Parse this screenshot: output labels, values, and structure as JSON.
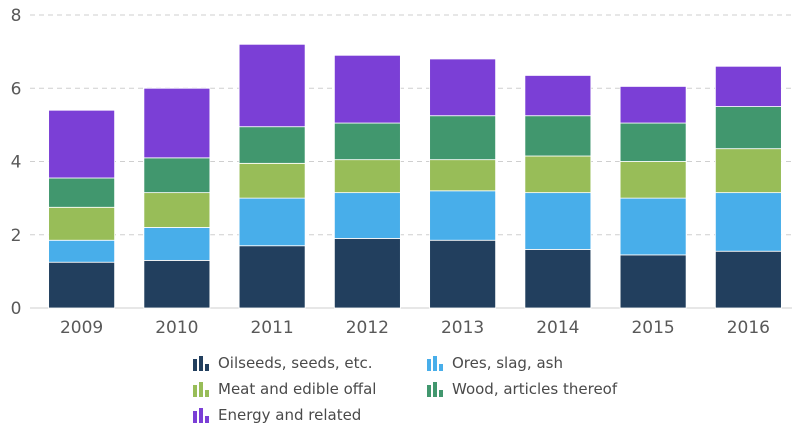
{
  "chart_data": {
    "type": "bar",
    "stacked": true,
    "categories": [
      "2009",
      "2010",
      "2011",
      "2012",
      "2013",
      "2014",
      "2015",
      "2016"
    ],
    "ylim": [
      0,
      8
    ],
    "yticks": [
      "0",
      "2",
      "4",
      "6",
      "8"
    ],
    "grid": true,
    "legend_position": "bottom",
    "series": [
      {
        "name": "Oilseeds, seeds, etc.",
        "color": "#223f5e",
        "values": [
          1.25,
          1.3,
          1.7,
          1.9,
          1.85,
          1.6,
          1.45,
          1.55
        ]
      },
      {
        "name": "Ores, slag, ash",
        "color": "#48aeea",
        "values": [
          0.6,
          0.9,
          1.3,
          1.25,
          1.35,
          1.55,
          1.55,
          1.6
        ]
      },
      {
        "name": "Meat and edible offal",
        "color": "#98bd58",
        "values": [
          0.9,
          0.95,
          0.95,
          0.9,
          0.85,
          1.0,
          1.0,
          1.2
        ]
      },
      {
        "name": "Wood, articles thereof",
        "color": "#41976e",
        "values": [
          0.8,
          0.95,
          1.0,
          1.0,
          1.2,
          1.1,
          1.05,
          1.15
        ]
      },
      {
        "name": "Energy and related",
        "color": "#7b3fd6",
        "values": [
          1.85,
          1.9,
          2.25,
          1.85,
          1.55,
          1.1,
          1.0,
          1.1
        ]
      }
    ]
  }
}
